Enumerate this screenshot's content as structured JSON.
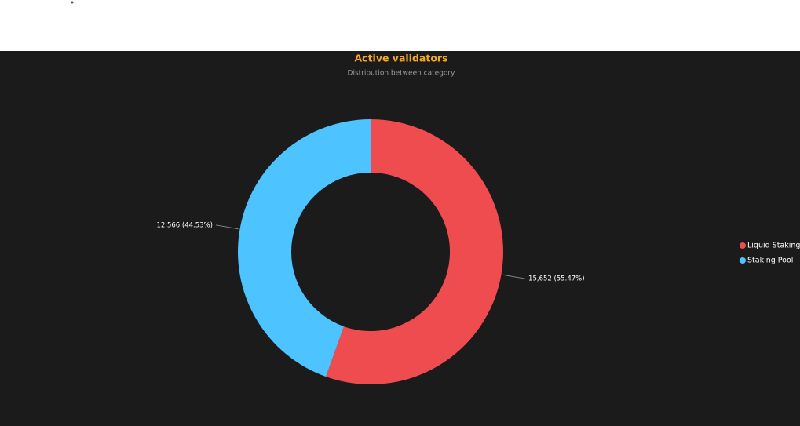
{
  "chart_data": {
    "type": "donut",
    "title": "Active validators",
    "subtitle": "Distribution between category",
    "categories": [
      "Liquid Staking",
      "Staking Pool"
    ],
    "values": [
      15652,
      12566
    ],
    "value_labels": [
      "15,652 (55.47%)",
      "12,566 (44.53%)"
    ],
    "colors": [
      "#ef4c4f",
      "#4dc3ff"
    ],
    "legend": "right"
  }
}
